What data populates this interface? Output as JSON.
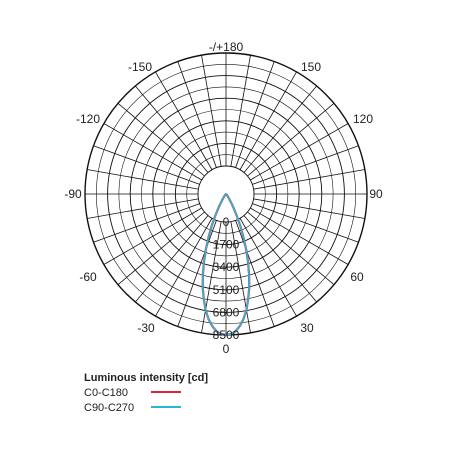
{
  "chart_data": {
    "type": "polar",
    "angle_labels": {
      "top": "-/+180",
      "bottom": "0",
      "left": [
        "-150",
        "-120",
        "-90",
        "-60",
        "-30"
      ],
      "right": [
        "150",
        "120",
        "90",
        "60",
        "30"
      ]
    },
    "radial_ticks": [
      0,
      1700,
      3400,
      5100,
      6800,
      8500
    ],
    "radial_tick_labels": [
      "0",
      "1700",
      "3400",
      "5100",
      "6800",
      "8500"
    ],
    "rmax": 8500,
    "angle_step_deg": 10,
    "legend_title": "Luminous intensity [cd]",
    "series": [
      {
        "name": "C0-C180",
        "color": "#d62839",
        "angles": [
          0,
          2,
          4,
          6,
          8,
          10,
          12,
          14,
          16,
          18,
          20,
          22,
          24,
          26,
          28,
          30,
          32,
          35,
          40,
          45,
          50,
          60,
          90
        ],
        "values": [
          8500,
          8450,
          8300,
          8000,
          7600,
          7100,
          6450,
          5800,
          5050,
          4300,
          3550,
          2800,
          2150,
          1550,
          1050,
          700,
          450,
          250,
          120,
          70,
          40,
          15,
          0
        ]
      },
      {
        "name": "C90-C270",
        "color": "#29b6d8",
        "angles": [
          0,
          2,
          4,
          6,
          8,
          10,
          12,
          14,
          16,
          18,
          20,
          22,
          24,
          26,
          28,
          30,
          32,
          35,
          40,
          45,
          50,
          60,
          90
        ],
        "values": [
          8500,
          8450,
          8300,
          8000,
          7600,
          7100,
          6450,
          5800,
          5050,
          4300,
          3550,
          2800,
          2150,
          1550,
          1050,
          700,
          450,
          250,
          120,
          70,
          40,
          15,
          0
        ]
      }
    ]
  }
}
